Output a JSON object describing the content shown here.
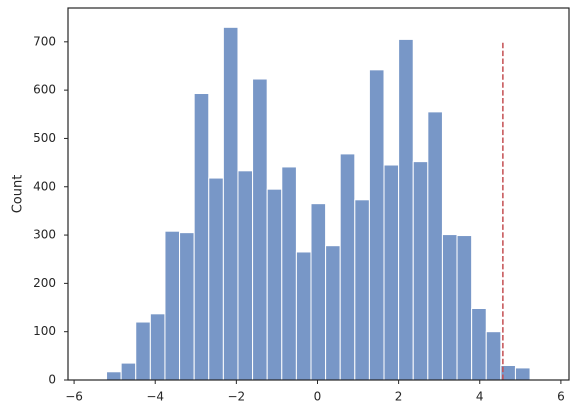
{
  "chart_data": {
    "type": "histogram",
    "y_label": "Count",
    "bins": [
      -5.2,
      -4.84,
      -4.48,
      -4.12,
      -3.76,
      -3.4,
      -3.04,
      -2.68,
      -2.32,
      -1.96,
      -1.6,
      -1.24,
      -0.88,
      -0.52,
      -0.16,
      0.2,
      0.56,
      0.92,
      1.28,
      1.64,
      2.0,
      2.36,
      2.72,
      3.08,
      3.44,
      3.8,
      4.16,
      4.52,
      4.88,
      5.24
    ],
    "values": [
      17,
      35,
      120,
      137,
      308,
      305,
      593,
      418,
      730,
      433,
      623,
      395,
      441,
      265,
      365,
      278,
      468,
      373,
      642,
      445,
      705,
      452,
      555,
      301,
      299,
      148,
      100,
      30,
      25
    ],
    "color": "#7897c7",
    "xlim": [
      -6.15,
      6.2
    ],
    "xticks": [
      {
        "value": -6,
        "label": "−6"
      },
      {
        "value": -4,
        "label": "−4"
      },
      {
        "value": -2,
        "label": "−2"
      },
      0,
      2,
      4,
      6
    ],
    "ylim": [
      0,
      770
    ],
    "yticks": [
      0,
      100,
      200,
      300,
      400,
      500,
      600,
      700
    ],
    "grid": false,
    "vline": {
      "x": 4.57,
      "ymin": 0,
      "ymax": 700,
      "color": "#c44e52"
    }
  }
}
